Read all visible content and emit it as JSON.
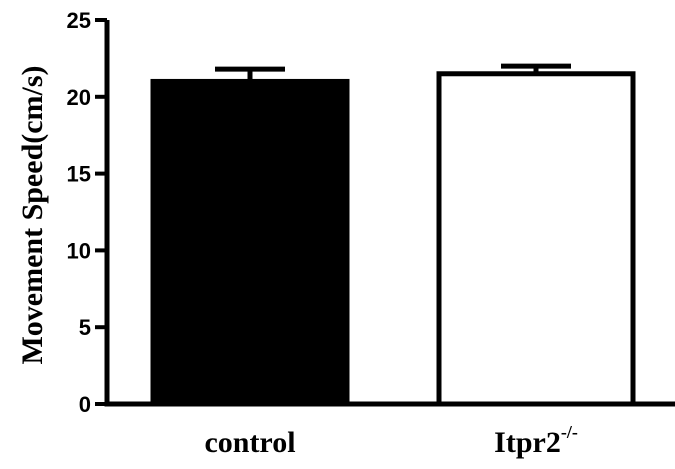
{
  "chart_data": {
    "type": "bar",
    "title": "",
    "ylabel": "Movement Speed(cm/s)",
    "xlabel": "",
    "ylim": [
      0,
      25
    ],
    "yticks": [
      0,
      5,
      10,
      15,
      20,
      25
    ],
    "grid": false,
    "legend": "none",
    "categories": [
      {
        "name": "control",
        "superscript": "",
        "value": 21.0,
        "error": 0.8,
        "fill": "#000000",
        "stroke": "#000000"
      },
      {
        "name": "Itpr2",
        "superscript": "-/-",
        "value": 21.5,
        "error": 0.5,
        "fill": "#ffffff",
        "stroke": "#000000"
      }
    ]
  }
}
